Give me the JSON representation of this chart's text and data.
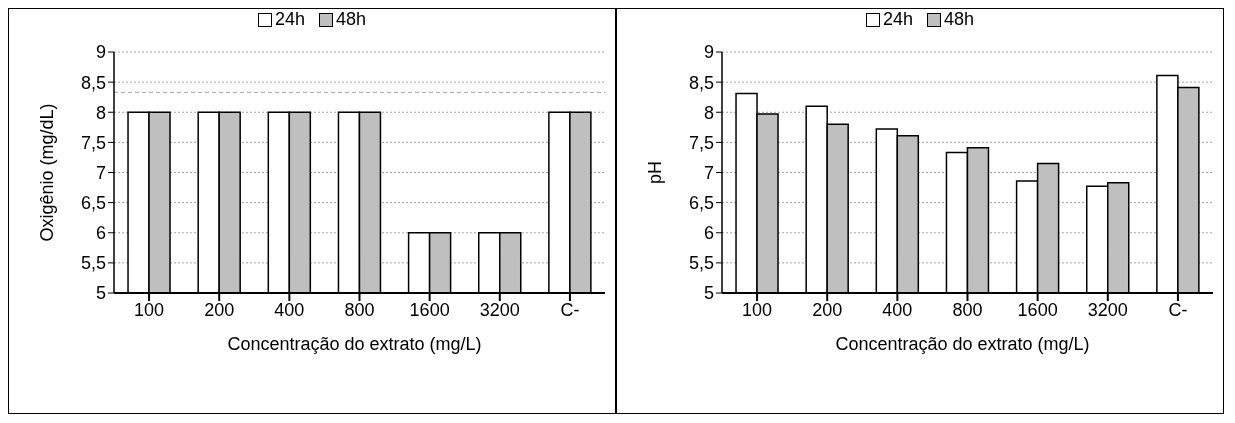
{
  "chart_data": [
    {
      "type": "bar",
      "xlabel": "Concentração do extrato (mg/L)",
      "ylabel": "Oxigênio (mg/dL)",
      "categories": [
        "100",
        "200",
        "400",
        "800",
        "1600",
        "3200",
        "C-"
      ],
      "series": [
        {
          "name": "24h",
          "color": "#ffffff",
          "values": [
            8,
            8,
            8,
            8,
            6,
            6,
            8
          ]
        },
        {
          "name": "48h",
          "color": "#bfbfbf",
          "values": [
            8,
            8,
            8,
            8,
            6,
            6,
            8
          ]
        }
      ],
      "ylim": [
        5,
        9
      ],
      "yticks": [
        5,
        {
          "value": 5.5,
          "label": "5,5"
        },
        6,
        {
          "value": 6.5,
          "label": "6,5"
        },
        7,
        {
          "value": 7.5,
          "label": "7,5"
        },
        8,
        {
          "value": 8.5,
          "label": "8,5"
        },
        9
      ],
      "ref_lines": [
        {
          "axis": "y",
          "value": 8.33,
          "color": "#a6a6a6",
          "line_style": "dashed"
        }
      ],
      "grid": "y",
      "legend": "top"
    },
    {
      "type": "bar",
      "xlabel": "Concentração do extrato (mg/L)",
      "ylabel": "pH",
      "categories": [
        "100",
        "200",
        "400",
        "800",
        "1600",
        "3200",
        "C-"
      ],
      "series": [
        {
          "name": "24h",
          "color": "#ffffff",
          "values": [
            8.31,
            8.1,
            7.72,
            7.33,
            6.86,
            6.77,
            8.61
          ]
        },
        {
          "name": "48h",
          "color": "#bfbfbf",
          "values": [
            7.97,
            7.8,
            7.61,
            7.41,
            7.15,
            6.83,
            8.41
          ]
        }
      ],
      "ylim": [
        5,
        9
      ],
      "yticks": [
        5,
        {
          "value": 5.5,
          "label": "5,5"
        },
        6,
        {
          "value": 6.5,
          "label": "6,5"
        },
        7,
        {
          "value": 7.5,
          "label": "7,5"
        },
        8,
        {
          "value": 8.5,
          "label": "8,5"
        },
        9
      ],
      "grid": "y",
      "legend": "top"
    }
  ]
}
